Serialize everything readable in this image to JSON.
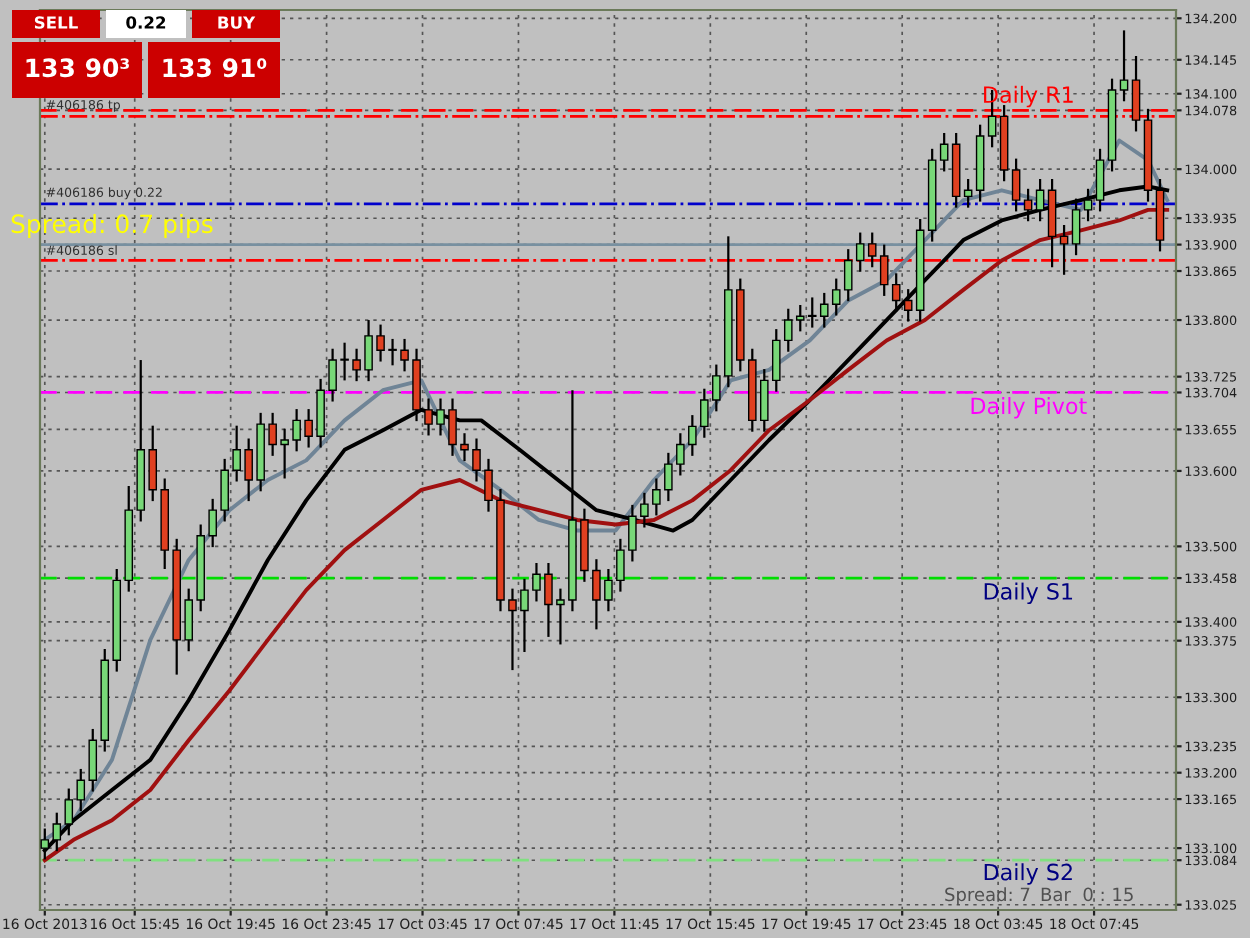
{
  "chart_data": {
    "type": "candlestick",
    "x": [
      "2013-10-16T12:00",
      "2013-10-16T12:30",
      "2013-10-16T13:00",
      "2013-10-16T13:30",
      "2013-10-16T14:00",
      "2013-10-16T14:30",
      "2013-10-16T15:00",
      "2013-10-16T15:30",
      "2013-10-16T16:00",
      "2013-10-16T16:30",
      "2013-10-16T17:00",
      "2013-10-16T17:30",
      "2013-10-16T18:00",
      "2013-10-16T18:30",
      "2013-10-16T19:00",
      "2013-10-16T19:30",
      "2013-10-16T20:00",
      "2013-10-16T20:30",
      "2013-10-16T21:00",
      "2013-10-16T21:30",
      "2013-10-16T22:00",
      "2013-10-16T22:30",
      "2013-10-16T23:00",
      "2013-10-16T23:30",
      "2013-10-17T00:00",
      "2013-10-17T00:30",
      "2013-10-17T01:00",
      "2013-10-17T01:30",
      "2013-10-17T02:00",
      "2013-10-17T02:30",
      "2013-10-17T03:00",
      "2013-10-17T03:30",
      "2013-10-17T04:00",
      "2013-10-17T04:30",
      "2013-10-17T05:00",
      "2013-10-17T05:30",
      "2013-10-17T06:00",
      "2013-10-17T06:30",
      "2013-10-17T07:00",
      "2013-10-17T07:30",
      "2013-10-17T08:00",
      "2013-10-17T08:30",
      "2013-10-17T09:00",
      "2013-10-17T09:30",
      "2013-10-17T10:00",
      "2013-10-17T10:30",
      "2013-10-17T11:00",
      "2013-10-17T11:30",
      "2013-10-17T12:00",
      "2013-10-17T12:30",
      "2013-10-17T13:00",
      "2013-10-17T13:30",
      "2013-10-17T14:00",
      "2013-10-17T14:30",
      "2013-10-17T15:00",
      "2013-10-17T15:30",
      "2013-10-17T16:00",
      "2013-10-17T16:30",
      "2013-10-17T17:00",
      "2013-10-17T17:30",
      "2013-10-17T18:00",
      "2013-10-17T18:30",
      "2013-10-17T19:00",
      "2013-10-17T19:30",
      "2013-10-17T20:00",
      "2013-10-17T20:30",
      "2013-10-17T21:00",
      "2013-10-17T21:30",
      "2013-10-17T22:00",
      "2013-10-17T22:30",
      "2013-10-17T23:00",
      "2013-10-17T23:30",
      "2013-10-18T00:00",
      "2013-10-18T00:30",
      "2013-10-18T01:00",
      "2013-10-18T01:30",
      "2013-10-18T02:00",
      "2013-10-18T02:30",
      "2013-10-18T03:00",
      "2013-10-18T03:30",
      "2013-10-18T04:00",
      "2013-10-18T04:30",
      "2013-10-18T05:00",
      "2013-10-18T05:30",
      "2013-10-18T06:00",
      "2013-10-18T06:30",
      "2013-10-18T07:00",
      "2013-10-18T07:30",
      "2013-10-18T08:00",
      "2013-10-18T08:30",
      "2013-10-18T09:00",
      "2013-10-18T09:30",
      "2013-10-18T10:00",
      "2013-10-18T10:30"
    ],
    "ohlc": [
      [
        133.1,
        133.126,
        133.085,
        133.111
      ],
      [
        133.111,
        133.147,
        133.096,
        133.132
      ],
      [
        133.132,
        133.179,
        133.117,
        133.164
      ],
      [
        133.164,
        133.205,
        133.149,
        133.19
      ],
      [
        133.19,
        133.258,
        133.175,
        133.243
      ],
      [
        133.243,
        133.364,
        133.228,
        133.349
      ],
      [
        133.349,
        133.47,
        133.334,
        133.455
      ],
      [
        133.455,
        133.58,
        133.44,
        133.548
      ],
      [
        133.548,
        133.747,
        133.533,
        133.628
      ],
      [
        133.628,
        133.66,
        133.56,
        133.575
      ],
      [
        133.575,
        133.59,
        133.47,
        133.495
      ],
      [
        133.495,
        133.51,
        133.33,
        133.376
      ],
      [
        133.376,
        133.444,
        133.361,
        133.429
      ],
      [
        133.429,
        133.529,
        133.414,
        133.514
      ],
      [
        133.514,
        133.563,
        133.499,
        133.548
      ],
      [
        133.548,
        133.616,
        133.533,
        133.601
      ],
      [
        133.601,
        133.66,
        133.586,
        133.628
      ],
      [
        133.628,
        133.643,
        133.56,
        133.588
      ],
      [
        133.588,
        133.677,
        133.573,
        133.662
      ],
      [
        133.662,
        133.677,
        133.62,
        133.635
      ],
      [
        133.635,
        133.656,
        133.59,
        133.641
      ],
      [
        133.641,
        133.682,
        133.626,
        133.667
      ],
      [
        133.667,
        133.682,
        133.631,
        133.646
      ],
      [
        133.646,
        133.722,
        133.631,
        133.707
      ],
      [
        133.707,
        133.762,
        133.692,
        133.747
      ],
      [
        133.747,
        133.77,
        133.72,
        133.747
      ],
      [
        133.747,
        133.762,
        133.719,
        133.734
      ],
      [
        133.734,
        133.8,
        133.719,
        133.779
      ],
      [
        133.779,
        133.794,
        133.745,
        133.76
      ],
      [
        133.76,
        133.775,
        133.74,
        133.76
      ],
      [
        133.76,
        133.775,
        133.732,
        133.747
      ],
      [
        133.747,
        133.762,
        133.666,
        133.681
      ],
      [
        133.681,
        133.696,
        133.647,
        133.662
      ],
      [
        133.662,
        133.696,
        133.647,
        133.681
      ],
      [
        133.681,
        133.696,
        133.62,
        133.635
      ],
      [
        133.635,
        133.65,
        133.613,
        133.628
      ],
      [
        133.628,
        133.643,
        133.586,
        133.601
      ],
      [
        133.601,
        133.616,
        133.546,
        133.561
      ],
      [
        133.561,
        133.576,
        133.414,
        133.429
      ],
      [
        133.429,
        133.444,
        133.336,
        133.415
      ],
      [
        133.415,
        133.457,
        133.36,
        133.442
      ],
      [
        133.442,
        133.478,
        133.427,
        133.463
      ],
      [
        133.463,
        133.478,
        133.38,
        133.423
      ],
      [
        133.423,
        133.444,
        133.37,
        133.429
      ],
      [
        133.429,
        133.707,
        133.414,
        133.535
      ],
      [
        133.535,
        133.55,
        133.453,
        133.468
      ],
      [
        133.468,
        133.483,
        133.39,
        133.429
      ],
      [
        133.429,
        133.47,
        133.414,
        133.455
      ],
      [
        133.455,
        133.51,
        133.44,
        133.495
      ],
      [
        133.495,
        133.555,
        133.48,
        133.54
      ],
      [
        133.54,
        133.571,
        133.525,
        133.556
      ],
      [
        133.556,
        133.59,
        133.541,
        133.575
      ],
      [
        133.575,
        133.624,
        133.56,
        133.609
      ],
      [
        133.609,
        133.65,
        133.594,
        133.635
      ],
      [
        133.635,
        133.674,
        133.62,
        133.659
      ],
      [
        133.659,
        133.709,
        133.644,
        133.694
      ],
      [
        133.694,
        133.741,
        133.679,
        133.726
      ],
      [
        133.726,
        133.911,
        133.711,
        133.84
      ],
      [
        133.84,
        133.855,
        133.732,
        133.747
      ],
      [
        133.747,
        133.762,
        133.652,
        133.667
      ],
      [
        133.667,
        133.735,
        133.652,
        133.72
      ],
      [
        133.72,
        133.788,
        133.705,
        133.773
      ],
      [
        133.773,
        133.815,
        133.758,
        133.8
      ],
      [
        133.8,
        133.82,
        133.785,
        133.805
      ],
      [
        133.805,
        133.83,
        133.79,
        133.805
      ],
      [
        133.805,
        133.836,
        133.79,
        133.821
      ],
      [
        133.821,
        133.855,
        133.806,
        133.84
      ],
      [
        133.84,
        133.894,
        133.825,
        133.879
      ],
      [
        133.879,
        133.916,
        133.864,
        133.901
      ],
      [
        133.901,
        133.916,
        133.87,
        133.885
      ],
      [
        133.885,
        133.9,
        133.832,
        133.847
      ],
      [
        133.847,
        133.862,
        133.811,
        133.826
      ],
      [
        133.826,
        133.841,
        133.798,
        133.813
      ],
      [
        133.813,
        133.934,
        133.798,
        133.919
      ],
      [
        133.919,
        134.027,
        133.904,
        134.012
      ],
      [
        134.012,
        134.048,
        133.997,
        134.033
      ],
      [
        134.033,
        134.048,
        133.949,
        133.964
      ],
      [
        133.964,
        133.987,
        133.949,
        133.972
      ],
      [
        133.972,
        134.059,
        133.957,
        134.044
      ],
      [
        134.044,
        134.105,
        134.029,
        134.07
      ],
      [
        134.07,
        134.085,
        133.984,
        133.999
      ],
      [
        133.999,
        134.014,
        133.944,
        133.959
      ],
      [
        133.959,
        133.974,
        133.931,
        133.946
      ],
      [
        133.946,
        133.987,
        133.931,
        133.972
      ],
      [
        133.972,
        133.987,
        133.87,
        133.911
      ],
      [
        133.911,
        133.926,
        133.86,
        133.901
      ],
      [
        133.901,
        133.961,
        133.886,
        133.946
      ],
      [
        133.946,
        133.974,
        133.931,
        133.959
      ],
      [
        133.959,
        134.027,
        133.944,
        134.012
      ],
      [
        134.012,
        134.12,
        133.997,
        134.105
      ],
      [
        134.105,
        134.184,
        134.09,
        134.118
      ],
      [
        134.118,
        134.15,
        134.05,
        134.065
      ],
      [
        134.065,
        134.08,
        133.957,
        133.972
      ],
      [
        133.972,
        133.987,
        133.891,
        133.906
      ]
    ],
    "series": [
      {
        "type": "line",
        "color": "#6f8496",
        "x": [
          "2013-10-16T12:00",
          "2013-10-16T13:12",
          "2013-10-16T14:48",
          "2013-10-16T16:24",
          "2013-10-16T18:00",
          "2013-10-16T19:42",
          "2013-10-16T21:18",
          "2013-10-16T22:54",
          "2013-10-17T00:30",
          "2013-10-17T02:06",
          "2013-10-17T03:42",
          "2013-10-17T04:30",
          "2013-10-17T05:18",
          "2013-10-17T07:00",
          "2013-10-17T08:36",
          "2013-10-17T10:12",
          "2013-10-17T11:48",
          "2013-10-17T13:24",
          "2013-10-17T15:00",
          "2013-10-17T16:36",
          "2013-10-17T18:12",
          "2013-10-17T19:54",
          "2013-10-17T21:30",
          "2013-10-17T23:06",
          "2013-10-18T00:42",
          "2013-10-18T02:18",
          "2013-10-18T03:54",
          "2013-10-18T05:30",
          "2013-10-18T07:12",
          "2013-10-18T08:48",
          "2013-10-18T10:00",
          "2013-10-18T10:48"
        ],
        "values": [
          133.111,
          133.137,
          133.217,
          133.376,
          133.482,
          133.548,
          133.588,
          133.614,
          133.667,
          133.707,
          133.72,
          133.667,
          133.614,
          133.575,
          133.535,
          133.521,
          133.521,
          133.588,
          133.641,
          133.72,
          133.734,
          133.773,
          133.826,
          133.853,
          133.906,
          133.959,
          133.972,
          133.959,
          133.946,
          134.038,
          134.012,
          133.959
        ]
      },
      {
        "type": "line",
        "color": "#000000",
        "x": [
          "2013-10-16T12:00",
          "2013-10-16T13:12",
          "2013-10-16T14:48",
          "2013-10-16T16:24",
          "2013-10-16T18:00",
          "2013-10-16T19:42",
          "2013-10-16T21:18",
          "2013-10-16T22:54",
          "2013-10-17T00:30",
          "2013-10-17T02:06",
          "2013-10-17T03:42",
          "2013-10-17T05:18",
          "2013-10-17T06:12",
          "2013-10-17T07:48",
          "2013-10-17T09:24",
          "2013-10-17T11:00",
          "2013-10-17T12:36",
          "2013-10-17T14:12",
          "2013-10-17T15:00",
          "2013-10-17T16:36",
          "2013-10-17T18:12",
          "2013-10-17T19:54",
          "2013-10-17T21:30",
          "2013-10-17T23:06",
          "2013-10-18T00:42",
          "2013-10-18T01:30",
          "2013-10-18T02:18",
          "2013-10-18T03:54",
          "2013-10-18T05:30",
          "2013-10-18T07:12",
          "2013-10-18T08:48",
          "2013-10-18T10:00",
          "2013-10-18T10:48"
        ],
        "values": [
          133.097,
          133.137,
          133.177,
          133.217,
          133.296,
          133.389,
          133.482,
          133.561,
          133.628,
          133.654,
          133.681,
          133.667,
          133.667,
          133.628,
          133.588,
          133.548,
          133.535,
          133.521,
          133.535,
          133.588,
          133.641,
          133.694,
          133.747,
          133.8,
          133.853,
          133.879,
          133.906,
          133.932,
          133.946,
          133.959,
          133.972,
          133.977,
          133.972
        ]
      },
      {
        "type": "line",
        "color": "#a01010",
        "x": [
          "2013-10-16T12:00",
          "2013-10-16T13:12",
          "2013-10-16T14:48",
          "2013-10-16T16:24",
          "2013-10-16T18:00",
          "2013-10-16T19:42",
          "2013-10-16T21:18",
          "2013-10-16T22:54",
          "2013-10-17T00:30",
          "2013-10-17T02:06",
          "2013-10-17T03:42",
          "2013-10-17T05:18",
          "2013-10-17T07:00",
          "2013-10-17T08:36",
          "2013-10-17T10:12",
          "2013-10-17T11:48",
          "2013-10-17T13:24",
          "2013-10-17T15:00",
          "2013-10-17T16:36",
          "2013-10-17T18:12",
          "2013-10-17T19:54",
          "2013-10-17T21:30",
          "2013-10-17T23:06",
          "2013-10-18T00:42",
          "2013-10-18T02:18",
          "2013-10-18T03:54",
          "2013-10-18T05:30",
          "2013-10-18T07:12",
          "2013-10-18T08:48",
          "2013-10-18T10:00",
          "2013-10-18T10:48"
        ],
        "values": [
          133.084,
          133.111,
          133.137,
          133.177,
          133.243,
          133.309,
          133.376,
          133.442,
          133.495,
          133.535,
          133.575,
          133.588,
          133.561,
          133.548,
          133.535,
          133.529,
          133.535,
          133.561,
          133.601,
          133.654,
          133.694,
          133.734,
          133.773,
          133.8,
          133.84,
          133.879,
          133.906,
          133.919,
          133.932,
          133.946,
          133.946
        ]
      }
    ],
    "xlim": [
      "2013-10-16T11:48",
      "2013-10-18T11:10"
    ],
    "xticks": [
      {
        "value": "2013-10-16T12:00",
        "label": "16 Oct 2013"
      },
      {
        "value": "2013-10-16T15:45",
        "label": "16 Oct 15:45"
      },
      {
        "value": "2013-10-16T19:45",
        "label": "16 Oct 19:45"
      },
      {
        "value": "2013-10-16T23:45",
        "label": "16 Oct 23:45"
      },
      {
        "value": "2013-10-17T03:45",
        "label": "17 Oct 03:45"
      },
      {
        "value": "2013-10-17T07:45",
        "label": "17 Oct 07:45"
      },
      {
        "value": "2013-10-17T11:45",
        "label": "17 Oct 11:45"
      },
      {
        "value": "2013-10-17T15:45",
        "label": "17 Oct 15:45"
      },
      {
        "value": "2013-10-17T19:45",
        "label": "17 Oct 19:45"
      },
      {
        "value": "2013-10-17T23:45",
        "label": "17 Oct 23:45"
      },
      {
        "value": "2013-10-18T03:45",
        "label": "18 Oct 03:45"
      },
      {
        "value": "2013-10-18T07:45",
        "label": "18 Oct 07:45"
      }
    ],
    "ylim": [
      133.018,
      134.211
    ],
    "yticks": [
      {
        "value": 134.2,
        "label": "134.200"
      },
      {
        "value": 134.145,
        "label": "134.145"
      },
      {
        "value": 134.1,
        "label": "134.100"
      },
      {
        "value": 134.078,
        "label": "134.078"
      },
      {
        "value": 134.0,
        "label": "134.000"
      },
      {
        "value": 133.935,
        "label": "133.935"
      },
      {
        "value": 133.9,
        "label": "133.900"
      },
      {
        "value": 133.865,
        "label": "133.865"
      },
      {
        "value": 133.8,
        "label": "133.800"
      },
      {
        "value": 133.725,
        "label": "133.725"
      },
      {
        "value": 133.704,
        "label": "133.704"
      },
      {
        "value": 133.655,
        "label": "133.655"
      },
      {
        "value": 133.6,
        "label": "133.600"
      },
      {
        "value": 133.5,
        "label": "133.500"
      },
      {
        "value": 133.458,
        "label": "133.458"
      },
      {
        "value": 133.4,
        "label": "133.400"
      },
      {
        "value": 133.375,
        "label": "133.375"
      },
      {
        "value": 133.3,
        "label": "133.300"
      },
      {
        "value": 133.235,
        "label": "133.235"
      },
      {
        "value": 133.2,
        "label": "133.200"
      },
      {
        "value": 133.165,
        "label": "133.165"
      },
      {
        "value": 133.1,
        "label": "133.100"
      },
      {
        "value": 133.084,
        "label": "133.084"
      },
      {
        "value": 133.025,
        "label": "133.025"
      }
    ],
    "grid": true,
    "ref_lines": [
      {
        "axis": "y",
        "value": 134.078,
        "label": "Daily R1",
        "color": "#ff0000",
        "line_style": "dashed"
      },
      {
        "axis": "y",
        "value": 133.704,
        "label": "Daily Pivot",
        "color": "#ff00ff",
        "line_style": "dashed"
      },
      {
        "axis": "y",
        "value": 133.458,
        "label": "Daily S1",
        "color": "#00dd00",
        "line_style": "dashed"
      },
      {
        "axis": "y",
        "value": 133.084,
        "label": "Daily S2",
        "color": "#80e080",
        "line_style": "dashed"
      },
      {
        "axis": "y",
        "value": 134.07,
        "label": "#406186 tp",
        "color": "#ff0000",
        "line_style": "dashdot"
      },
      {
        "axis": "y",
        "value": 133.954,
        "label": "#406186 buy 0.22",
        "color": "#0000cc",
        "line_style": "dashdot"
      },
      {
        "axis": "y",
        "value": 133.879,
        "label": "#406186 sl",
        "color": "#ff0000",
        "line_style": "dashdot"
      },
      {
        "axis": "y",
        "value": 133.9,
        "color": "#7890a0",
        "line_style": "solid"
      }
    ],
    "annotations": [
      "SELL",
      "0.22",
      "BUY",
      "133 90³",
      "133 91⁰",
      "Spread: 0.7 pips",
      "Spread: 7",
      "Bar  0 : 15"
    ]
  }
}
